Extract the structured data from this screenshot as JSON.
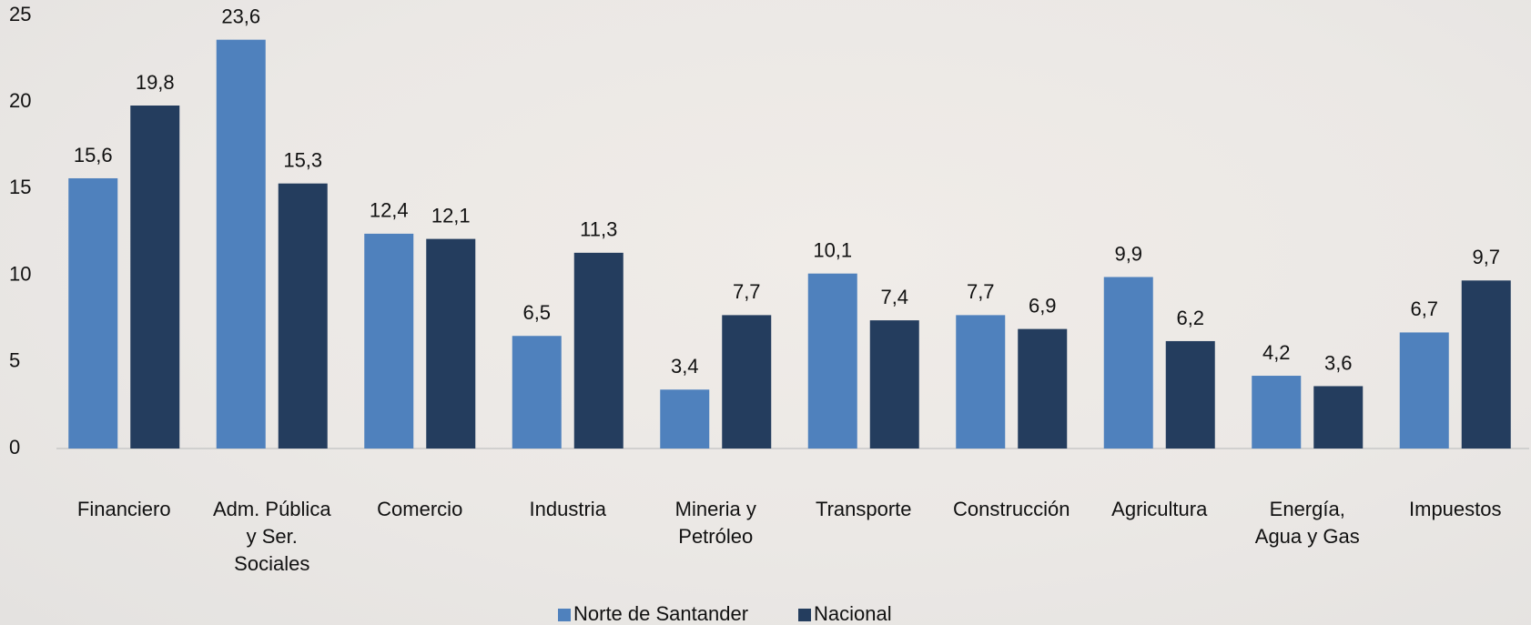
{
  "chart_data": {
    "type": "bar",
    "categories": [
      "Financiero",
      "Adm. Pública y Ser. Sociales",
      "Comercio",
      "Industria",
      "Mineria y Petróleo",
      "Transporte",
      "Construcción",
      "Agricultura",
      "Energía, Agua y Gas",
      "Impuestos"
    ],
    "series": [
      {
        "name": "Norte de Santander",
        "color": "#4f81bd",
        "values": [
          15.6,
          23.6,
          12.4,
          6.5,
          3.4,
          10.1,
          7.7,
          9.9,
          4.2,
          6.7
        ],
        "value_labels": [
          "15,6",
          "23,6",
          "12,4",
          "6,5",
          "3,4",
          "10,1",
          "7,7",
          "9,9",
          "4,2",
          "6,7"
        ]
      },
      {
        "name": "Nacional",
        "color": "#243d5e",
        "values": [
          19.8,
          15.3,
          12.1,
          11.3,
          7.7,
          7.4,
          6.9,
          6.2,
          3.6,
          9.7
        ],
        "value_labels": [
          "19,8",
          "15,3",
          "12,1",
          "11,3",
          "7,7",
          "7,4",
          "6,9",
          "6,2",
          "3,6",
          "9,7"
        ]
      }
    ],
    "ylim": [
      0,
      25
    ],
    "yticks": [
      0,
      5,
      10,
      15,
      20,
      25
    ],
    "grid": false,
    "legend": "bottom"
  }
}
